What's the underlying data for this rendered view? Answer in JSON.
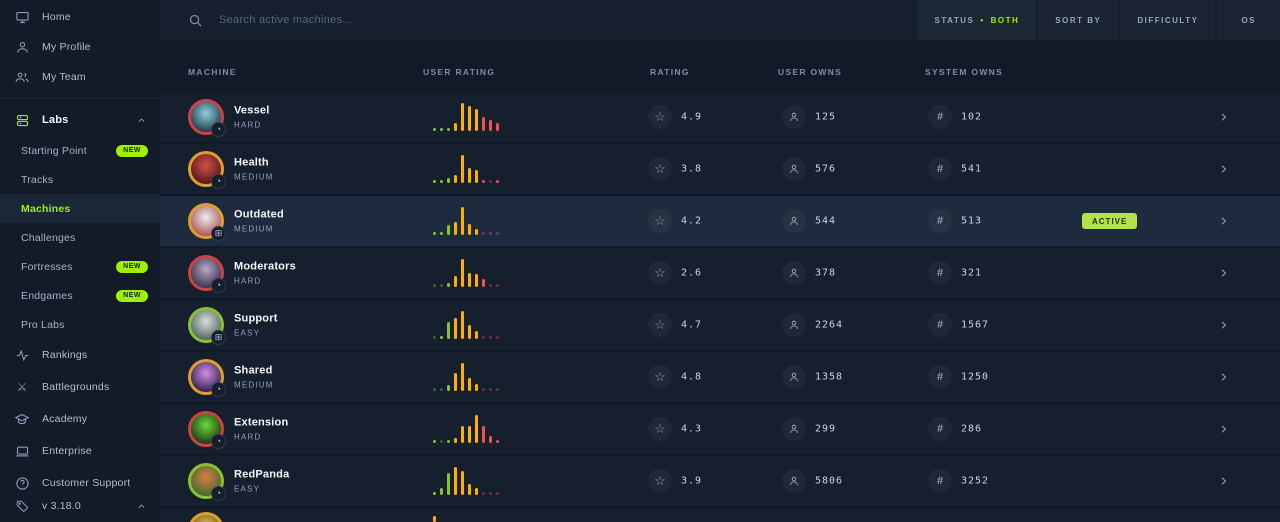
{
  "colors": {
    "accent": "#9fef00",
    "hist": {
      "g": "#86c232",
      "y": "#ffaf00",
      "r": "#ef5350"
    },
    "active_badge_bg": "#b3e24b",
    "row_bg": "#161f2e",
    "active_row_bg": "#1e2a3d"
  },
  "icons": {
    "star": "☆",
    "hash": "#",
    "windows": "⊞",
    "gauge": "◔",
    "swords": "⚔",
    "help": "?"
  },
  "sidebar": {
    "top_items": [
      {
        "label": "Home",
        "icon": "monitor-icon"
      },
      {
        "label": "My Profile",
        "icon": "person-icon"
      },
      {
        "label": "My Team",
        "icon": "people-icon"
      }
    ],
    "labs": {
      "label": "Labs",
      "icon": "labs-icon"
    },
    "labs_items": [
      {
        "label": "Starting Point",
        "badge": "NEW"
      },
      {
        "label": "Tracks"
      },
      {
        "label": "Machines",
        "active": true
      },
      {
        "label": "Challenges"
      },
      {
        "label": "Fortresses",
        "badge": "NEW"
      },
      {
        "label": "Endgames",
        "badge": "NEW"
      },
      {
        "label": "Pro Labs"
      }
    ],
    "bottom_items": [
      {
        "label": "Rankings",
        "icon": "activity-icon"
      },
      {
        "label": "Battlegrounds",
        "icon": "swords-icon"
      },
      {
        "label": "Academy",
        "icon": "academy-icon"
      },
      {
        "label": "Enterprise",
        "icon": "laptop-icon"
      },
      {
        "label": "Customer Support",
        "icon": "help-icon"
      }
    ],
    "version": {
      "label": "v 3.18.0",
      "icon": "tag-icon"
    }
  },
  "topbar": {
    "search_placeholder": "Search active machines...",
    "filters": [
      {
        "label": "STATUS",
        "separator": "•",
        "value": "BOTH"
      },
      {
        "label": "SORT BY"
      },
      {
        "label": "DIFFICULTY"
      },
      {
        "label": "OS"
      }
    ]
  },
  "table": {
    "columns": [
      "MACHINE",
      "USER RATING",
      "RATING",
      "USER OWNS",
      "SYSTEM OWNS"
    ]
  },
  "rows": [
    {
      "name": "Vessel",
      "difficulty": "HARD",
      "rating": "4.9",
      "user_owns": "125",
      "system_owns": "102",
      "status": "",
      "os": "gauge",
      "os_glyph": "◔",
      "ring": "#d04242",
      "avatar": {
        "c1": "#8fd0d8",
        "c2": "#1f3b4d"
      },
      "histogram": [
        {
          "h": 10,
          "c": "g"
        },
        {
          "h": 10,
          "c": "g"
        },
        {
          "h": 12,
          "c": "g"
        },
        {
          "h": 30,
          "c": "y"
        },
        {
          "h": 100,
          "c": "y"
        },
        {
          "h": 88,
          "c": "y"
        },
        {
          "h": 78,
          "c": "y"
        },
        {
          "h": 50,
          "c": "r"
        },
        {
          "h": 38,
          "c": "r"
        },
        {
          "h": 28,
          "c": "r"
        }
      ]
    },
    {
      "name": "Health",
      "difficulty": "MEDIUM",
      "rating": "3.8",
      "user_owns": "576",
      "system_owns": "541",
      "status": "",
      "os": "gauge",
      "os_glyph": "◔",
      "ring": "#dd9f2e",
      "avatar": {
        "c1": "#d4504a",
        "c2": "#54181c"
      },
      "histogram": [
        {
          "h": 10,
          "c": "g"
        },
        {
          "h": 10,
          "c": "g"
        },
        {
          "h": 18,
          "c": "g"
        },
        {
          "h": 28,
          "c": "y"
        },
        {
          "h": 100,
          "c": "y"
        },
        {
          "h": 55,
          "c": "y"
        },
        {
          "h": 45,
          "c": "y"
        },
        {
          "h": 10,
          "c": "r"
        },
        {
          "h": 8,
          "c": "r",
          "f": 1
        },
        {
          "h": 10,
          "c": "r"
        }
      ]
    },
    {
      "name": "Outdated",
      "difficulty": "MEDIUM",
      "rating": "4.2",
      "user_owns": "544",
      "system_owns": "513",
      "status": "ACTIVE",
      "os": "windows",
      "os_glyph": "⊞",
      "ring": "#dd9f2e",
      "avatar": {
        "c1": "#e8eef2",
        "c2": "#b05454"
      },
      "histogram": [
        {
          "h": 10,
          "c": "g"
        },
        {
          "h": 10,
          "c": "g"
        },
        {
          "h": 35,
          "c": "g"
        },
        {
          "h": 45,
          "c": "y"
        },
        {
          "h": 100,
          "c": "y"
        },
        {
          "h": 40,
          "c": "y"
        },
        {
          "h": 20,
          "c": "y"
        },
        {
          "h": 8,
          "c": "r",
          "f": 1
        },
        {
          "h": 8,
          "c": "r",
          "f": 1
        },
        {
          "h": 8,
          "c": "r",
          "f": 1
        }
      ]
    },
    {
      "name": "Moderators",
      "difficulty": "HARD",
      "rating": "2.6",
      "user_owns": "378",
      "system_owns": "321",
      "status": "",
      "os": "gauge",
      "os_glyph": "◔",
      "ring": "#d04242",
      "avatar": {
        "c1": "#b9a8c4",
        "c2": "#3a3350"
      },
      "histogram": [
        {
          "h": 8,
          "c": "g",
          "f": 1
        },
        {
          "h": 8,
          "c": "g",
          "f": 1
        },
        {
          "h": 15,
          "c": "g"
        },
        {
          "h": 40,
          "c": "y"
        },
        {
          "h": 100,
          "c": "y"
        },
        {
          "h": 50,
          "c": "y"
        },
        {
          "h": 45,
          "c": "y"
        },
        {
          "h": 28,
          "c": "r"
        },
        {
          "h": 8,
          "c": "r",
          "f": 1
        },
        {
          "h": 10,
          "c": "r",
          "f": 1
        }
      ]
    },
    {
      "name": "Support",
      "difficulty": "EASY",
      "rating": "4.7",
      "user_owns": "2264",
      "system_owns": "1567",
      "status": "",
      "os": "windows",
      "os_glyph": "⊞",
      "ring": "#86c232",
      "avatar": {
        "c1": "#d7dde0",
        "c2": "#53665c"
      },
      "histogram": [
        {
          "h": 8,
          "c": "g",
          "f": 1
        },
        {
          "h": 10,
          "c": "g"
        },
        {
          "h": 60,
          "c": "g"
        },
        {
          "h": 75,
          "c": "y"
        },
        {
          "h": 100,
          "c": "y"
        },
        {
          "h": 50,
          "c": "y"
        },
        {
          "h": 28,
          "c": "y"
        },
        {
          "h": 8,
          "c": "r",
          "f": 1
        },
        {
          "h": 8,
          "c": "r",
          "f": 1
        },
        {
          "h": 8,
          "c": "r",
          "f": 1
        }
      ]
    },
    {
      "name": "Shared",
      "difficulty": "MEDIUM",
      "rating": "4.8",
      "user_owns": "1358",
      "system_owns": "1250",
      "status": "",
      "os": "gauge",
      "os_glyph": "◔",
      "ring": "#dd9f2e",
      "avatar": {
        "c1": "#d08fe8",
        "c2": "#33204d"
      },
      "histogram": [
        {
          "h": 8,
          "c": "g",
          "f": 1
        },
        {
          "h": 8,
          "c": "g",
          "f": 1
        },
        {
          "h": 20,
          "c": "g"
        },
        {
          "h": 65,
          "c": "y"
        },
        {
          "h": 100,
          "c": "y"
        },
        {
          "h": 45,
          "c": "y"
        },
        {
          "h": 25,
          "c": "y"
        },
        {
          "h": 8,
          "c": "r",
          "f": 1
        },
        {
          "h": 8,
          "c": "r",
          "f": 1
        },
        {
          "h": 8,
          "c": "r",
          "f": 1
        }
      ]
    },
    {
      "name": "Extension",
      "difficulty": "HARD",
      "rating": "4.3",
      "user_owns": "299",
      "system_owns": "286",
      "status": "",
      "os": "gauge",
      "os_glyph": "◔",
      "ring": "#d04242",
      "avatar": {
        "c1": "#6cd83a",
        "c2": "#1c3b16"
      },
      "histogram": [
        {
          "h": 10,
          "c": "g"
        },
        {
          "h": 8,
          "c": "g",
          "f": 1
        },
        {
          "h": 10,
          "c": "g"
        },
        {
          "h": 18,
          "c": "y"
        },
        {
          "h": 60,
          "c": "y"
        },
        {
          "h": 62,
          "c": "y"
        },
        {
          "h": 100,
          "c": "y"
        },
        {
          "h": 60,
          "c": "r"
        },
        {
          "h": 25,
          "c": "r"
        },
        {
          "h": 12,
          "c": "r"
        }
      ]
    },
    {
      "name": "RedPanda",
      "difficulty": "EASY",
      "rating": "3.9",
      "user_owns": "5806",
      "system_owns": "3252",
      "status": "",
      "os": "gauge",
      "os_glyph": "◔",
      "ring": "#86c232",
      "avatar": {
        "c1": "#e07b44",
        "c2": "#3f6b2e"
      },
      "histogram": [
        {
          "h": 12,
          "c": "g"
        },
        {
          "h": 25,
          "c": "g"
        },
        {
          "h": 80,
          "c": "g"
        },
        {
          "h": 100,
          "c": "y"
        },
        {
          "h": 85,
          "c": "y"
        },
        {
          "h": 40,
          "c": "y"
        },
        {
          "h": 25,
          "c": "y"
        },
        {
          "h": 8,
          "c": "r",
          "f": 1
        },
        {
          "h": 8,
          "c": "r",
          "f": 1
        },
        {
          "h": 8,
          "c": "r",
          "f": 1
        }
      ]
    }
  ],
  "partial_row": {
    "ring": "#dd9f2e",
    "avatar": {
      "c1": "#e8c25a",
      "c2": "#6a5420"
    },
    "histogram": [
      {
        "h": 22,
        "c": "y"
      }
    ]
  }
}
